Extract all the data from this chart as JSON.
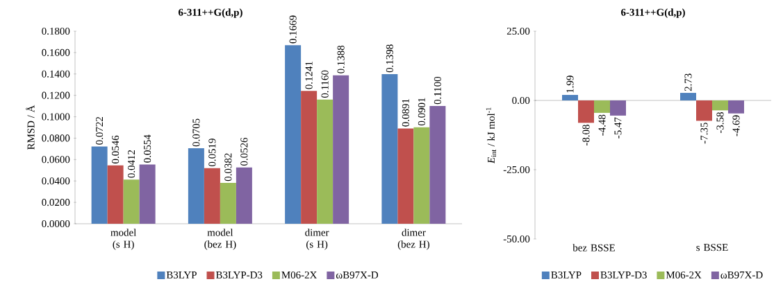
{
  "chart_data": [
    {
      "type": "bar",
      "title": "6-311++G(d,p)",
      "ylabel": "RMSD / Å",
      "categories": [
        "model (s H)",
        "model (bez H)",
        "dimer (s H)",
        "dimer (bez H)"
      ],
      "series": [
        {
          "name": "B3LYP",
          "color": "#4f81bd",
          "values": [
            0.0722,
            0.0705,
            0.1669,
            0.1398
          ],
          "value_labels": [
            "0.0722",
            "0.0705",
            "0.1669",
            "0.1398"
          ]
        },
        {
          "name": "B3LYP-D3",
          "color": "#c0504d",
          "values": [
            0.0546,
            0.0519,
            0.1241,
            0.0891
          ],
          "value_labels": [
            "0.0546",
            "0.0519",
            "0.1241",
            "0.0891"
          ]
        },
        {
          "name": "M06-2X",
          "color": "#9bbb59",
          "values": [
            0.0412,
            0.0382,
            0.116,
            0.0901
          ],
          "value_labels": [
            "0.0412",
            "0.0382",
            "0.1160",
            "0.0901"
          ]
        },
        {
          "name": "ωB97X-D",
          "color": "#8064a2",
          "values": [
            0.0554,
            0.0526,
            0.1388,
            0.11
          ],
          "value_labels": [
            "0.0554",
            "0.0526",
            "0.1388",
            "0.1100"
          ]
        }
      ],
      "ylim": [
        0,
        0.18
      ],
      "yticks": [
        {
          "value": 0,
          "label": "0.0000"
        },
        {
          "value": 0.02,
          "label": "0.0200"
        },
        {
          "value": 0.04,
          "label": "0.0400"
        },
        {
          "value": 0.06,
          "label": "0.0600"
        },
        {
          "value": 0.08,
          "label": "0.0800"
        },
        {
          "value": 0.1,
          "label": "0.1000"
        },
        {
          "value": 0.12,
          "label": "0.1200"
        },
        {
          "value": 0.14,
          "label": "0.1400"
        },
        {
          "value": 0.16,
          "label": "0.1600"
        },
        {
          "value": 0.18,
          "label": "0.1800"
        }
      ],
      "legend": "bottom"
    },
    {
      "type": "bar",
      "title": "6-311++G(d,p)",
      "ylabel": "*E*$_{int}$ / kJ mol$^{-1}$",
      "categories": [
        "bez BSSE",
        "s BSSE"
      ],
      "series": [
        {
          "name": "B3LYP",
          "color": "#4f81bd",
          "values": [
            1.99,
            2.73
          ],
          "value_labels": [
            "1.99",
            "2.73"
          ]
        },
        {
          "name": "B3LYP-D3",
          "color": "#c0504d",
          "values": [
            -8.08,
            -7.35
          ],
          "value_labels": [
            "-8.08",
            "-7.35"
          ]
        },
        {
          "name": "M06-2X",
          "color": "#9bbb59",
          "values": [
            -4.48,
            -3.58
          ],
          "value_labels": [
            "-4.48",
            "-3.58"
          ]
        },
        {
          "name": "ωB97X-D",
          "color": "#8064a2",
          "values": [
            -5.47,
            -4.69
          ],
          "value_labels": [
            "-5.47",
            "-4.69"
          ]
        }
      ],
      "ylim": [
        -50,
        25
      ],
      "yticks": [
        {
          "value": -50,
          "label": "-50.00"
        },
        {
          "value": -25,
          "label": "-25.00"
        },
        {
          "value": 0,
          "label": "0.00"
        },
        {
          "value": 25,
          "label": "25.00"
        }
      ],
      "legend": "bottom"
    }
  ]
}
